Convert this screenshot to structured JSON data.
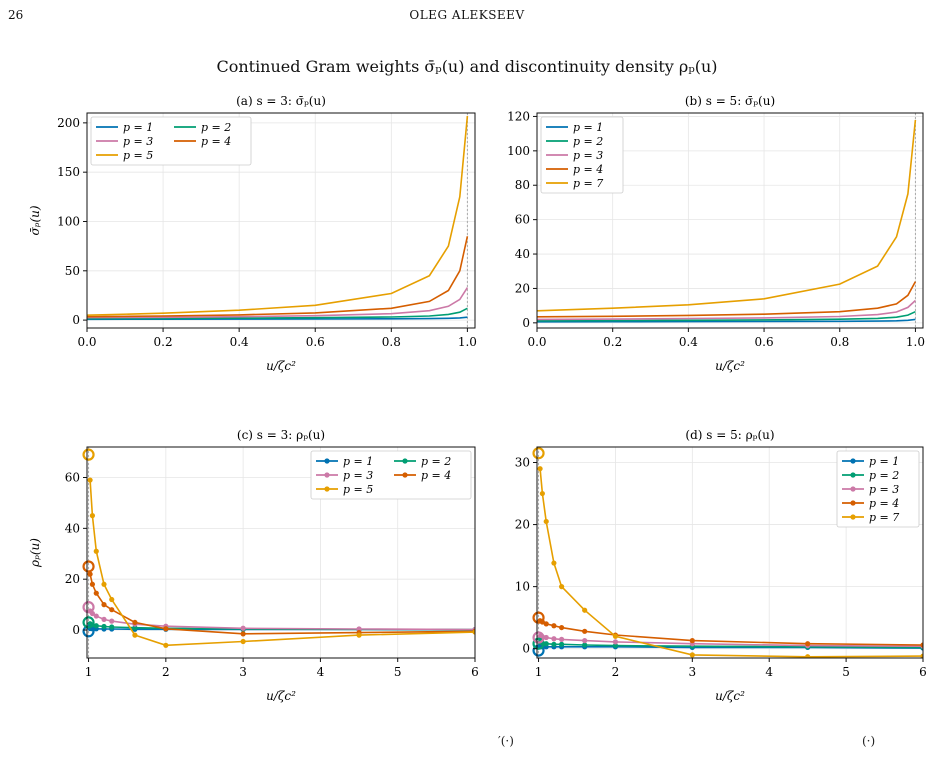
{
  "page": {
    "number": "26",
    "running_head": "OLEG ALEKSEEV",
    "figure_title": "Continued Gram weights σ̄ₚ(u) and discontinuity density ρₚ(u)",
    "footer_fragments": [
      "′(·)",
      "(·)"
    ]
  },
  "colors": {
    "p1": "#0072B2",
    "p2": "#009E73",
    "p3": "#CC79A7",
    "p4": "#D55E00",
    "p5": "#E69F00",
    "p7": "#E69F00",
    "grid": "#e6e6e6",
    "marker_line": "#aaaaaa"
  },
  "chart_data": [
    {
      "id": "a",
      "type": "line",
      "title": "(a)  s = 3: σ̄ₚ(u)",
      "xlabel": "u/ζc²",
      "ylabel": "σ̄ₚ(u)",
      "xlim": [
        0,
        1.02
      ],
      "ylim": [
        -8,
        210
      ],
      "xticks": [
        0.0,
        0.2,
        0.4,
        0.6,
        0.8,
        1.0
      ],
      "xtick_labels": [
        "0.0",
        "0.2",
        "0.4",
        "0.6",
        "0.8",
        "1.0"
      ],
      "yticks": [
        0,
        50,
        100,
        150,
        200
      ],
      "ytick_labels": [
        "0",
        "50",
        "100",
        "150",
        "200"
      ],
      "grid": true,
      "legend": {
        "position": "top-left",
        "columns": 2
      },
      "vline_x": 1.0,
      "series": [
        {
          "name": "p = 1",
          "color_key": "p1",
          "x": [
            0,
            0.2,
            0.4,
            0.6,
            0.8,
            0.9,
            0.95,
            0.98,
            1.0
          ],
          "y": [
            0.8,
            0.9,
            1.0,
            1.1,
            1.3,
            1.5,
            1.8,
            2.2,
            3
          ]
        },
        {
          "name": "p = 2",
          "color_key": "p2",
          "x": [
            0,
            0.2,
            0.4,
            0.6,
            0.8,
            0.9,
            0.95,
            0.98,
            1.0
          ],
          "y": [
            1.5,
            1.7,
            2.0,
            2.4,
            3.2,
            4.2,
            5.8,
            8,
            12
          ]
        },
        {
          "name": "p = 3",
          "color_key": "p3",
          "x": [
            0,
            0.2,
            0.4,
            0.6,
            0.8,
            0.9,
            0.95,
            0.98,
            1.0
          ],
          "y": [
            2.5,
            2.9,
            3.5,
            4.5,
            6.5,
            9.5,
            14,
            21,
            33
          ]
        },
        {
          "name": "p = 4",
          "color_key": "p4",
          "x": [
            0,
            0.2,
            0.4,
            0.6,
            0.8,
            0.9,
            0.95,
            0.98,
            1.0
          ],
          "y": [
            3.5,
            4.2,
            5.3,
            7.3,
            12,
            19,
            30,
            50,
            85
          ]
        },
        {
          "name": "p = 5",
          "color_key": "p5",
          "x": [
            0,
            0.2,
            0.4,
            0.6,
            0.8,
            0.9,
            0.95,
            0.98,
            1.0
          ],
          "y": [
            5,
            7,
            10,
            15,
            27,
            45,
            75,
            125,
            207
          ]
        }
      ]
    },
    {
      "id": "b",
      "type": "line",
      "title": "(b)  s = 5: σ̄ₚ(u)",
      "xlabel": "u/ζc²",
      "ylabel": "",
      "xlim": [
        0,
        1.02
      ],
      "ylim": [
        -3,
        122
      ],
      "xticks": [
        0.0,
        0.2,
        0.4,
        0.6,
        0.8,
        1.0
      ],
      "xtick_labels": [
        "0.0",
        "0.2",
        "0.4",
        "0.6",
        "0.8",
        "1.0"
      ],
      "yticks": [
        0,
        20,
        40,
        60,
        80,
        100,
        120
      ],
      "ytick_labels": [
        "0",
        "20",
        "40",
        "60",
        "80",
        "100",
        "120"
      ],
      "grid": true,
      "legend": {
        "position": "top-left",
        "columns": 1
      },
      "vline_x": 1.0,
      "series": [
        {
          "name": "p = 1",
          "color_key": "p1",
          "x": [
            0,
            0.2,
            0.4,
            0.6,
            0.8,
            0.9,
            0.95,
            0.98,
            1.0
          ],
          "y": [
            0.6,
            0.65,
            0.7,
            0.8,
            0.9,
            1.0,
            1.2,
            1.5,
            2
          ]
        },
        {
          "name": "p = 2",
          "color_key": "p2",
          "x": [
            0,
            0.2,
            0.4,
            0.6,
            0.8,
            0.9,
            0.95,
            0.98,
            1.0
          ],
          "y": [
            1.2,
            1.3,
            1.5,
            1.7,
            2.1,
            2.6,
            3.3,
            4.5,
            6.5
          ]
        },
        {
          "name": "p = 3",
          "color_key": "p3",
          "x": [
            0,
            0.2,
            0.4,
            0.6,
            0.8,
            0.9,
            0.95,
            0.98,
            1.0
          ],
          "y": [
            2.0,
            2.2,
            2.5,
            2.9,
            3.7,
            4.8,
            6.3,
            9,
            13
          ]
        },
        {
          "name": "p = 4",
          "color_key": "p4",
          "x": [
            0,
            0.2,
            0.4,
            0.6,
            0.8,
            0.9,
            0.95,
            0.98,
            1.0
          ],
          "y": [
            3.5,
            3.8,
            4.3,
            5.0,
            6.5,
            8.5,
            11,
            16,
            24
          ]
        },
        {
          "name": "p = 7",
          "color_key": "p7",
          "x": [
            0,
            0.2,
            0.4,
            0.6,
            0.8,
            0.9,
            0.95,
            0.98,
            1.0
          ],
          "y": [
            7,
            8.5,
            10.5,
            14,
            22.5,
            33,
            50,
            75,
            118
          ]
        }
      ]
    },
    {
      "id": "c",
      "type": "line",
      "title": "(c)  s = 3: ρₚ(u)",
      "xlabel": "u/ζc²",
      "ylabel": "ρₚ(u)",
      "xlim": [
        0.98,
        6.0
      ],
      "ylim": [
        -11,
        72
      ],
      "xticks": [
        1,
        2,
        3,
        4,
        5,
        6
      ],
      "xtick_labels": [
        "1",
        "2",
        "3",
        "4",
        "5",
        "6"
      ],
      "yticks": [
        0,
        20,
        40,
        60
      ],
      "ytick_labels": [
        "0",
        "20",
        "40",
        "60"
      ],
      "grid": true,
      "legend": {
        "position": "top-right",
        "columns": 2
      },
      "vline_x": 1.0,
      "series": [
        {
          "name": "p = 1",
          "color_key": "p1",
          "x": [
            1.02,
            1.05,
            1.1,
            1.2,
            1.3,
            1.6,
            2,
            3,
            4.5,
            6
          ],
          "y": [
            0.6,
            0.5,
            0.5,
            0.4,
            0.4,
            0.3,
            0.3,
            0.2,
            0.2,
            0.1
          ],
          "end_value": -0.5
        },
        {
          "name": "p = 2",
          "color_key": "p2",
          "x": [
            1.02,
            1.05,
            1.1,
            1.2,
            1.3,
            1.6,
            2,
            3,
            4.5,
            6
          ],
          "y": [
            2.5,
            2.0,
            1.7,
            1.4,
            1.2,
            0.9,
            0.7,
            0.4,
            0.3,
            0.2
          ],
          "end_value": 3
        },
        {
          "name": "p = 3",
          "color_key": "p3",
          "x": [
            1.02,
            1.05,
            1.1,
            1.2,
            1.3,
            1.6,
            2,
            3,
            4.5,
            6
          ],
          "y": [
            7.5,
            6.5,
            5.5,
            4.2,
            3.5,
            2.3,
            1.5,
            0.7,
            0.4,
            0.2
          ],
          "end_value": 9
        },
        {
          "name": "p = 4",
          "color_key": "p4",
          "x": [
            1.02,
            1.05,
            1.1,
            1.2,
            1.3,
            1.6,
            2,
            3,
            4.5,
            6
          ],
          "y": [
            22,
            18,
            14.5,
            10,
            8,
            3,
            0.5,
            -1.5,
            -1.0,
            -0.5
          ],
          "end_value": 25
        },
        {
          "name": "p = 5",
          "color_key": "p5",
          "x": [
            1.02,
            1.05,
            1.1,
            1.2,
            1.3,
            1.6,
            2,
            3,
            4.5,
            6
          ],
          "y": [
            59,
            45,
            31,
            18,
            12,
            -2,
            -6,
            -4.5,
            -2,
            -0.8
          ],
          "end_value": 69
        }
      ]
    },
    {
      "id": "d",
      "type": "line",
      "title": "(d)  s = 5: ρₚ(u)",
      "xlabel": "u/ζc²",
      "ylabel": "",
      "xlim": [
        0.98,
        6.0
      ],
      "ylim": [
        -1.5,
        32.5
      ],
      "xticks": [
        1,
        2,
        3,
        4,
        5,
        6
      ],
      "xtick_labels": [
        "1",
        "2",
        "3",
        "4",
        "5",
        "6"
      ],
      "yticks": [
        0,
        10,
        20,
        30
      ],
      "ytick_labels": [
        "0",
        "10",
        "20",
        "30"
      ],
      "grid": true,
      "legend": {
        "position": "top-right",
        "columns": 1
      },
      "vline_x": 1.0,
      "series": [
        {
          "name": "p = 1",
          "color_key": "p1",
          "x": [
            1.02,
            1.05,
            1.1,
            1.2,
            1.3,
            1.6,
            2,
            3,
            4.5,
            6
          ],
          "y": [
            0.3,
            0.3,
            0.3,
            0.3,
            0.3,
            0.3,
            0.3,
            0.2,
            0.2,
            0.1
          ],
          "end_value": -0.3
        },
        {
          "name": "p = 2",
          "color_key": "p2",
          "x": [
            1.02,
            1.05,
            1.1,
            1.2,
            1.3,
            1.6,
            2,
            3,
            4.5,
            6
          ],
          "y": [
            1.0,
            0.9,
            0.8,
            0.7,
            0.7,
            0.6,
            0.5,
            0.4,
            0.3,
            0.2
          ],
          "end_value": 0.8
        },
        {
          "name": "p = 3",
          "color_key": "p3",
          "x": [
            1.02,
            1.05,
            1.1,
            1.2,
            1.3,
            1.6,
            2,
            3,
            4.5,
            6
          ],
          "y": [
            2.0,
            1.9,
            1.8,
            1.6,
            1.5,
            1.3,
            1.1,
            0.8,
            0.5,
            0.4
          ],
          "end_value": 1.8
        },
        {
          "name": "p = 4",
          "color_key": "p4",
          "x": [
            1.02,
            1.05,
            1.1,
            1.2,
            1.3,
            1.6,
            2,
            3,
            4.5,
            6
          ],
          "y": [
            4.5,
            4.3,
            4.0,
            3.7,
            3.4,
            2.8,
            2.2,
            1.3,
            0.8,
            0.6
          ],
          "end_value": 5
        },
        {
          "name": "p = 7",
          "color_key": "p7",
          "x": [
            1.02,
            1.05,
            1.1,
            1.2,
            1.3,
            1.6,
            2,
            3,
            4.5,
            6
          ],
          "y": [
            29,
            25,
            20.5,
            13.8,
            10,
            6.2,
            2,
            -1,
            -1.3,
            -1.2
          ],
          "end_value": 31.5
        }
      ]
    }
  ]
}
